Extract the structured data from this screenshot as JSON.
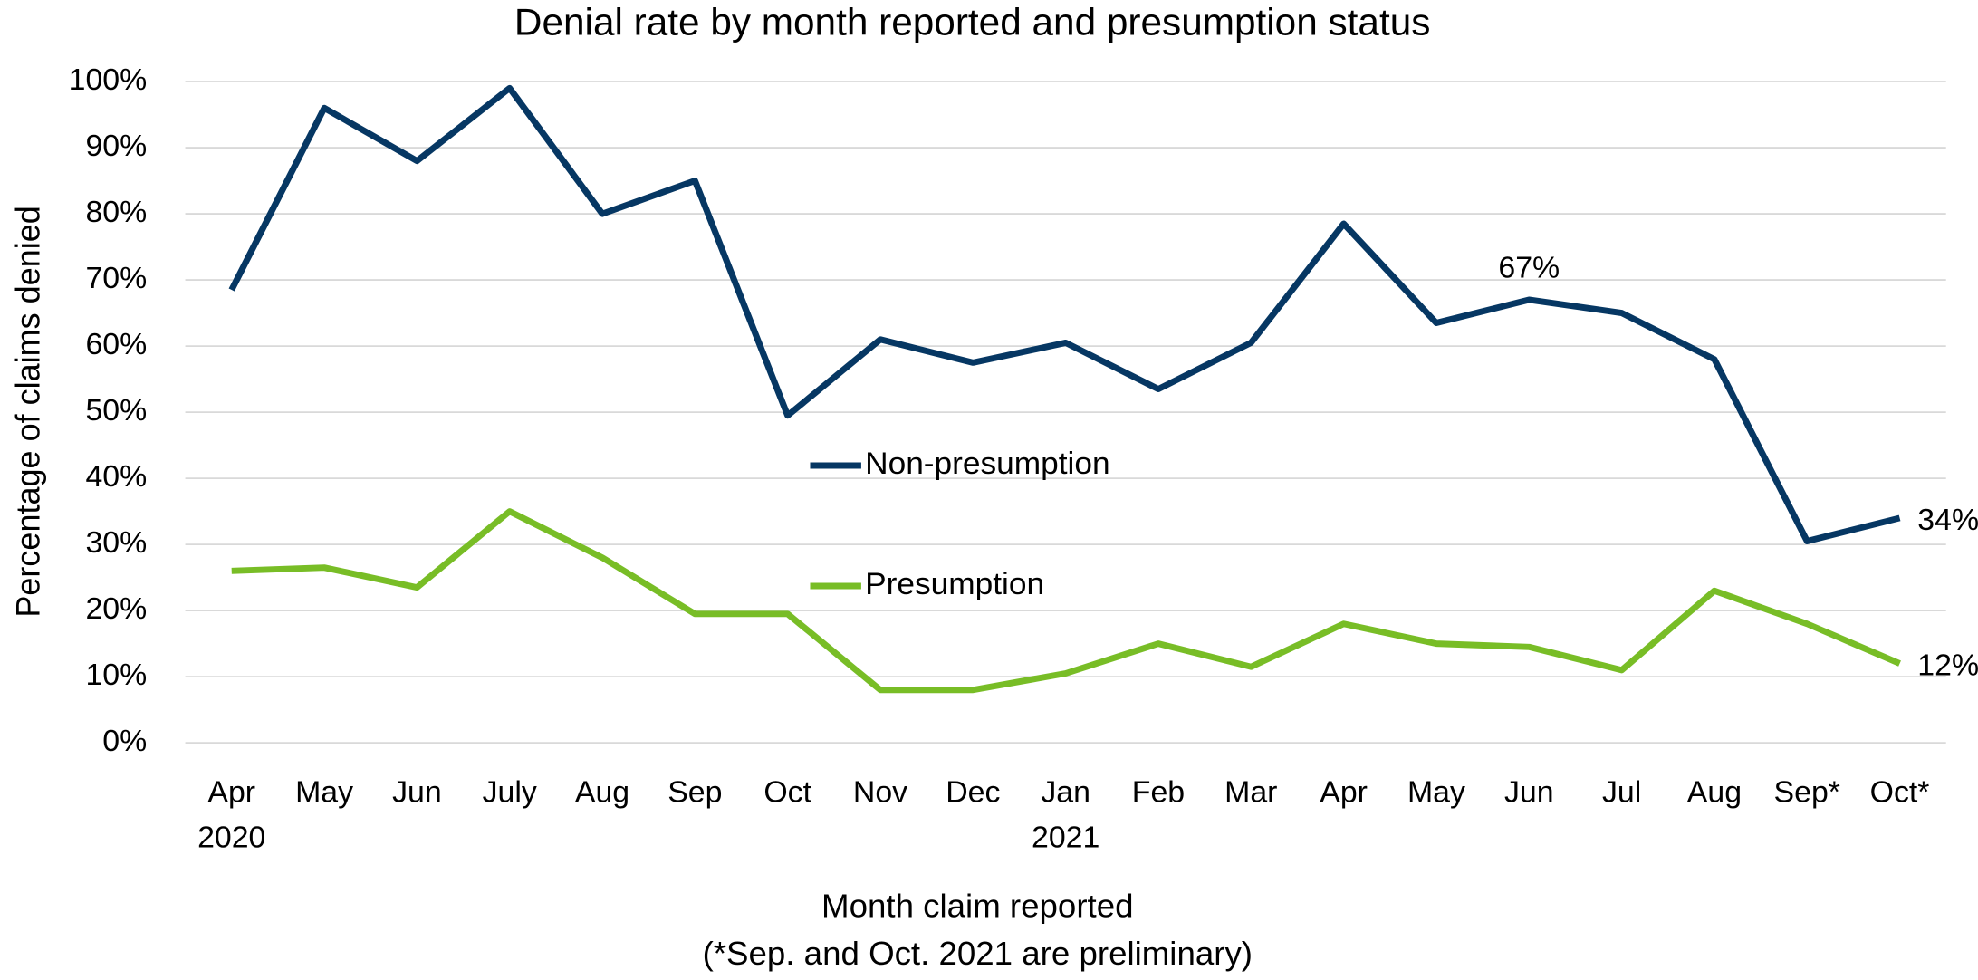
{
  "chart_data": {
    "type": "line",
    "title": "Denial rate by month reported and presumption status",
    "y_label": "Percentage of claims denied",
    "x_label": "Month claim reported",
    "note": "(*Sep. and Oct. 2021 are preliminary)",
    "categories": [
      "Apr",
      "May",
      "Jun",
      "July",
      "Aug",
      "Sep",
      "Oct",
      "Nov",
      "Dec",
      "Jan",
      "Feb",
      "Mar",
      "Apr",
      "May",
      "Jun",
      "Jul",
      "Aug",
      "Sep*",
      "Oct*"
    ],
    "category_groups": [
      "2020",
      null,
      null,
      null,
      null,
      null,
      null,
      null,
      null,
      "2021",
      null,
      null,
      null,
      null,
      null,
      null,
      null,
      null,
      null
    ],
    "series": [
      {
        "name": "Non-presumption",
        "color": "#063763",
        "values": [
          68.5,
          96,
          88,
          99,
          80,
          85,
          49.5,
          61,
          57.5,
          60.5,
          53.5,
          60.5,
          78.5,
          63.5,
          67,
          65,
          58,
          30.5,
          34
        ],
        "value_labels": [
          null,
          null,
          null,
          null,
          null,
          null,
          null,
          null,
          null,
          null,
          null,
          null,
          null,
          null,
          "67%",
          null,
          null,
          null,
          "34%"
        ]
      },
      {
        "name": "Presumption",
        "color": "#78bd26",
        "values": [
          26,
          26.5,
          23.5,
          35,
          28,
          19.5,
          19.5,
          8,
          8,
          10.5,
          15,
          11.5,
          18,
          15,
          14.5,
          11,
          23,
          18,
          12
        ],
        "value_labels": [
          null,
          null,
          null,
          null,
          null,
          null,
          null,
          null,
          null,
          null,
          null,
          null,
          null,
          null,
          null,
          null,
          null,
          null,
          "12%"
        ]
      }
    ],
    "ylim": [
      0,
      100
    ],
    "yticks": [
      {
        "value": 0,
        "label": "0%"
      },
      {
        "value": 10,
        "label": "10%"
      },
      {
        "value": 20,
        "label": "20%"
      },
      {
        "value": 30,
        "label": "30%"
      },
      {
        "value": 40,
        "label": "40%"
      },
      {
        "value": 50,
        "label": "50%"
      },
      {
        "value": 60,
        "label": "60%"
      },
      {
        "value": 70,
        "label": "70%"
      },
      {
        "value": 80,
        "label": "80%"
      },
      {
        "value": 90,
        "label": "90%"
      },
      {
        "value": 100,
        "label": "100%"
      }
    ],
    "grid": true,
    "legend": "center"
  }
}
